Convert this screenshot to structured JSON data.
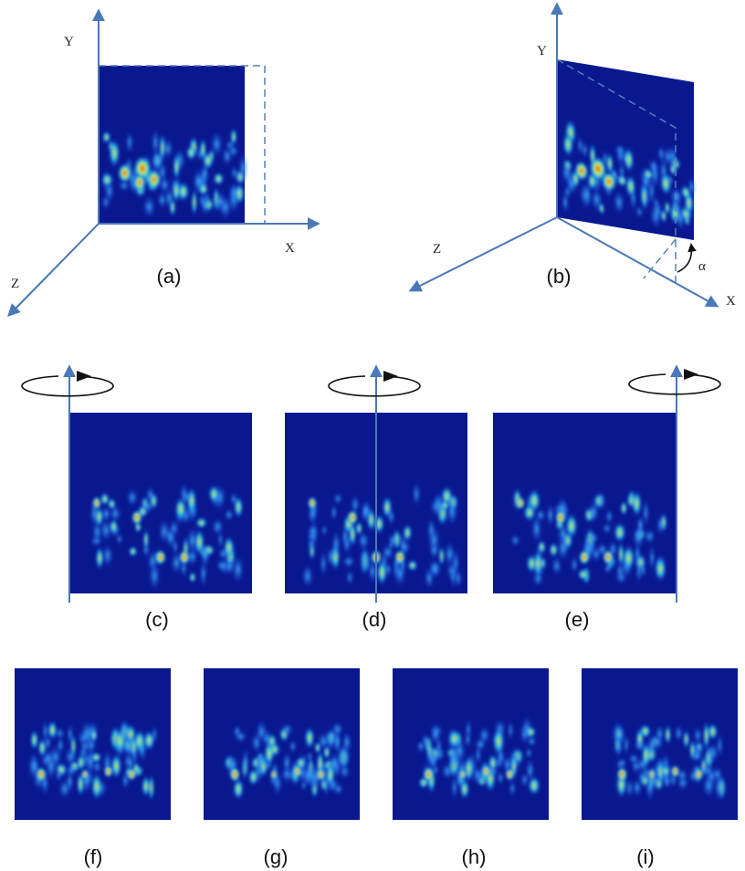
{
  "panel_a": {
    "caption": "(a)",
    "x_axis": "X",
    "y_axis": "Y",
    "z_axis": "Z"
  },
  "panel_b": {
    "caption": "(b)",
    "x_axis": "X",
    "y_axis": "Y",
    "z_axis": "Z",
    "angle": "α"
  },
  "panel_c": {
    "caption": "(c)"
  },
  "panel_d": {
    "caption": "(d)"
  },
  "panel_e": {
    "caption": "(e)"
  },
  "panel_f": {
    "caption": "(f)"
  },
  "panel_g": {
    "caption": "(g)"
  },
  "panel_h": {
    "caption": "(h)"
  },
  "panel_i": {
    "caption": "(i)"
  }
}
